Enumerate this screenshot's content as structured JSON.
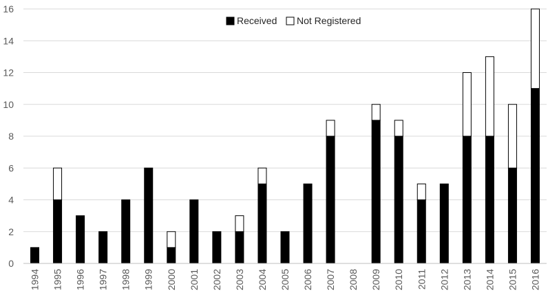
{
  "chart_data": {
    "type": "bar",
    "stacked": true,
    "categories": [
      "1994",
      "1995",
      "1996",
      "1997",
      "1998",
      "1999",
      "2000",
      "2001",
      "2002",
      "2003",
      "2004",
      "2005",
      "2006",
      "2007",
      "2008",
      "2009",
      "2010",
      "2011",
      "2012",
      "2013",
      "2014",
      "2015",
      "2016"
    ],
    "series": [
      {
        "name": "Received",
        "color": "#000000",
        "values": [
          1,
          4,
          3,
          2,
          4,
          6,
          1,
          4,
          2,
          2,
          5,
          2,
          5,
          8,
          0,
          9,
          8,
          4,
          5,
          8,
          8,
          6,
          11
        ]
      },
      {
        "name": "Not Registered",
        "color": "#ffffff",
        "values": [
          0,
          2,
          0,
          0,
          0,
          0,
          1,
          0,
          0,
          1,
          1,
          0,
          0,
          1,
          0,
          1,
          1,
          1,
          0,
          4,
          5,
          4,
          5
        ]
      }
    ],
    "title": "",
    "xlabel": "",
    "ylabel": "",
    "ylim": [
      0,
      16
    ],
    "yticks": [
      0,
      2,
      4,
      6,
      8,
      10,
      12,
      14,
      16
    ],
    "grid": true,
    "legend_position": "top-center"
  }
}
